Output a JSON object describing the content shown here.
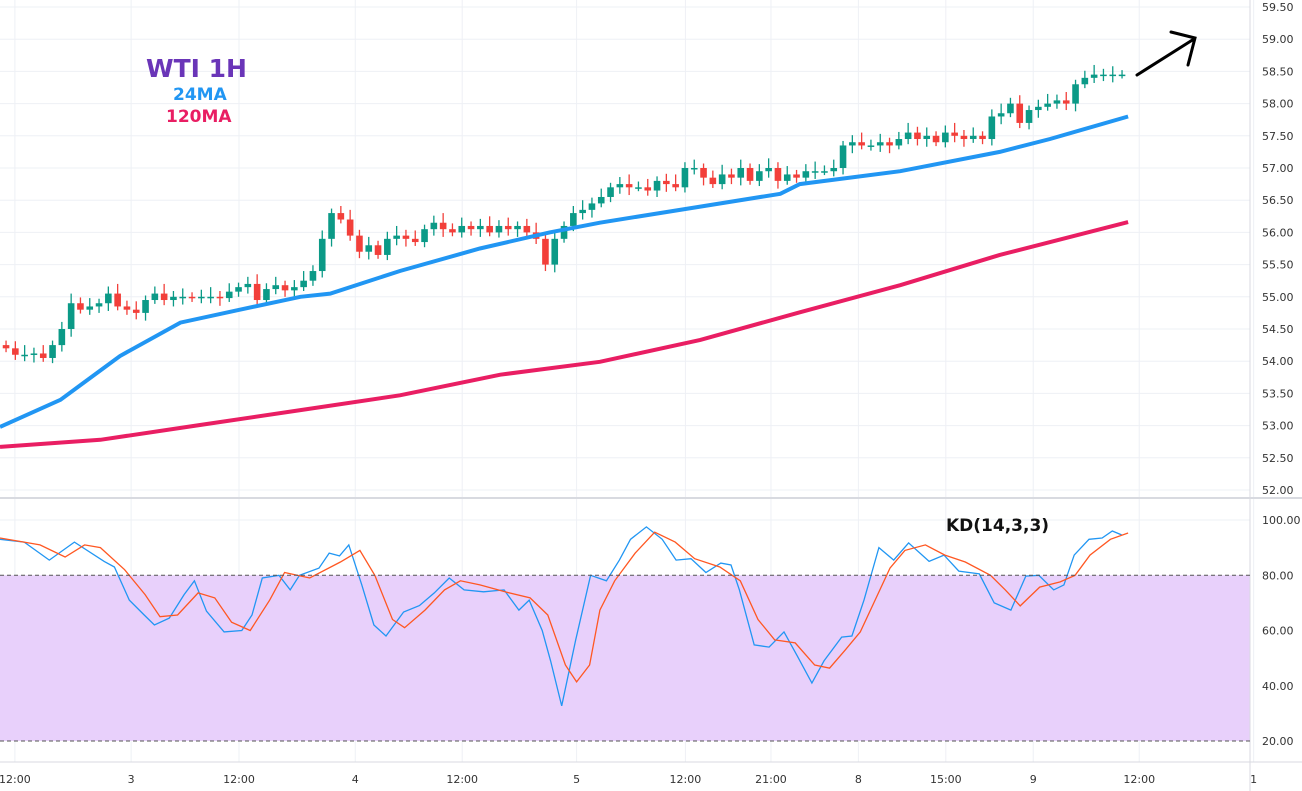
{
  "chart_data": [
    {
      "type": "candlestick",
      "title": "WTI 1H",
      "legend": [
        "24MA",
        "120MA"
      ],
      "legend_placement": "top-left",
      "colors": {
        "up": "#0b9a87",
        "down": "#f23f3a",
        "ma24": "#2196f3",
        "ma120": "#e91e63",
        "grid": "#eef0f5"
      },
      "ylim": [
        52.0,
        59.5
      ],
      "yticks": [
        "52.00",
        "52.50",
        "53.00",
        "53.50",
        "54.00",
        "54.50",
        "55.00",
        "55.50",
        "56.00",
        "56.50",
        "57.00",
        "57.50",
        "58.00",
        "58.50",
        "59.00",
        "59.50"
      ],
      "xticks": [
        {
          "bar": 1.6,
          "label": "12:00"
        },
        {
          "bar": 14.1,
          "label": "3"
        },
        {
          "bar": 25.7,
          "label": "12:00"
        },
        {
          "bar": 38.2,
          "label": "4"
        },
        {
          "bar": 49.7,
          "label": "12:00"
        },
        {
          "bar": 62,
          "label": "5"
        },
        {
          "bar": 73.7,
          "label": "12:00"
        },
        {
          "bar": 82.9,
          "label": "21:00"
        },
        {
          "bar": 92.3,
          "label": "8"
        },
        {
          "bar": 101.7,
          "label": "15:00"
        },
        {
          "bar": 111.1,
          "label": "9"
        },
        {
          "bar": 122.5,
          "label": "12:00"
        },
        {
          "bar": 134.8,
          "label": "1"
        }
      ],
      "open_first": 54.25,
      "close": [
        54.2,
        54.1,
        54.1,
        54.12,
        54.05,
        54.25,
        54.5,
        54.9,
        54.8,
        54.85,
        54.9,
        55.05,
        54.85,
        54.8,
        54.75,
        54.95,
        55.05,
        54.95,
        55.0,
        55.0,
        54.98,
        55.0,
        55.0,
        54.98,
        55.08,
        55.15,
        55.2,
        54.95,
        55.12,
        55.18,
        55.1,
        55.15,
        55.25,
        55.4,
        55.9,
        56.3,
        56.2,
        55.95,
        55.7,
        55.8,
        55.65,
        55.9,
        55.95,
        55.9,
        55.85,
        56.05,
        56.15,
        56.05,
        56.0,
        56.1,
        56.05,
        56.1,
        56.0,
        56.1,
        56.05,
        56.1,
        56.0,
        55.9,
        55.5,
        55.9,
        56.1,
        56.3,
        56.35,
        56.45,
        56.55,
        56.7,
        56.75,
        56.7,
        56.7,
        56.65,
        56.8,
        56.75,
        56.7,
        57.0,
        57.0,
        56.85,
        56.75,
        56.9,
        56.85,
        57.0,
        56.8,
        56.95,
        57.0,
        56.8,
        56.9,
        56.85,
        56.95,
        56.95,
        56.95,
        57.0,
        57.35,
        57.4,
        57.35,
        57.35,
        57.4,
        57.35,
        57.45,
        57.55,
        57.45,
        57.5,
        57.4,
        57.55,
        57.5,
        57.45,
        57.5,
        57.45,
        57.8,
        57.85,
        58.0,
        57.7,
        57.9,
        57.95,
        58.0,
        58.05,
        58.0,
        58.3,
        58.4,
        58.45,
        58.45,
        58.45,
        58.45
      ],
      "ma24": [
        [
          0,
          52.98
        ],
        [
          6.5,
          53.4
        ],
        [
          12.9,
          54.08
        ],
        [
          19.4,
          54.6
        ],
        [
          25.8,
          54.8
        ],
        [
          32.3,
          55.0
        ],
        [
          35.5,
          55.05
        ],
        [
          43,
          55.4
        ],
        [
          51.6,
          55.75
        ],
        [
          59.1,
          56.0
        ],
        [
          64.5,
          56.15
        ],
        [
          75.3,
          56.4
        ],
        [
          83.9,
          56.6
        ],
        [
          86,
          56.75
        ],
        [
          96.8,
          56.95
        ],
        [
          107.5,
          57.25
        ],
        [
          112.9,
          57.45
        ],
        [
          121.3,
          57.8
        ]
      ],
      "ma120": [
        [
          0,
          52.67
        ],
        [
          10.8,
          52.78
        ],
        [
          21.5,
          53.01
        ],
        [
          32.3,
          53.24
        ],
        [
          43,
          53.47
        ],
        [
          53.8,
          53.79
        ],
        [
          64.5,
          53.99
        ],
        [
          75.3,
          54.33
        ],
        [
          86,
          54.76
        ],
        [
          96.8,
          55.18
        ],
        [
          107.5,
          55.65
        ],
        [
          121.3,
          56.16
        ]
      ],
      "annotation": "up-arrow"
    },
    {
      "type": "line",
      "title": "KD(14,3,3)",
      "ylim": [
        15,
        105
      ],
      "yticks": [
        "20.00",
        "40.00",
        "60.00",
        "80.00",
        "100.00"
      ],
      "band": [
        20,
        80
      ],
      "colors": {
        "k": "#2196f3",
        "d": "#ff5722",
        "band": "#e8d0fb"
      },
      "k": [
        [
          0,
          93
        ],
        [
          2.6,
          92
        ],
        [
          5.3,
          85.5
        ],
        [
          8,
          92
        ],
        [
          11.2,
          85
        ],
        [
          12.3,
          83
        ],
        [
          13.9,
          71
        ],
        [
          15.5,
          65.6
        ],
        [
          16.6,
          62
        ],
        [
          18.2,
          64.5
        ],
        [
          19.8,
          73
        ],
        [
          20.9,
          78
        ],
        [
          22.2,
          67
        ],
        [
          24.1,
          59.5
        ],
        [
          26,
          60
        ],
        [
          27.1,
          65.6
        ],
        [
          28.2,
          79
        ],
        [
          30,
          80
        ],
        [
          31.2,
          74.7
        ],
        [
          32.2,
          80
        ],
        [
          34.3,
          82.6
        ],
        [
          35.4,
          88
        ],
        [
          36.5,
          87
        ],
        [
          37.5,
          91
        ],
        [
          38.9,
          76.5
        ],
        [
          40.2,
          62
        ],
        [
          41.5,
          58
        ],
        [
          43.4,
          66.7
        ],
        [
          45.1,
          69
        ],
        [
          46.7,
          73.6
        ],
        [
          48.3,
          79
        ],
        [
          49.9,
          74.7
        ],
        [
          52,
          74
        ],
        [
          54.2,
          74.7
        ],
        [
          55.8,
          67.4
        ],
        [
          56.9,
          71
        ],
        [
          58.3,
          60
        ],
        [
          59.2,
          49
        ],
        [
          60.4,
          32.7
        ],
        [
          61.9,
          56.6
        ],
        [
          63.5,
          80
        ],
        [
          65.2,
          78
        ],
        [
          66.6,
          85.5
        ],
        [
          67.8,
          93
        ],
        [
          69.5,
          97.5
        ],
        [
          71.2,
          93
        ],
        [
          72.7,
          85.5
        ],
        [
          74.3,
          86
        ],
        [
          75.9,
          81
        ],
        [
          77.5,
          84.4
        ],
        [
          78.6,
          83.7
        ],
        [
          79.5,
          74.7
        ],
        [
          81.1,
          54.8
        ],
        [
          82.7,
          54
        ],
        [
          84.3,
          59.5
        ],
        [
          85.7,
          51
        ],
        [
          87.3,
          41
        ],
        [
          88.6,
          49
        ],
        [
          90.5,
          57.6
        ],
        [
          91.6,
          58
        ],
        [
          92.9,
          71
        ],
        [
          94.5,
          90
        ],
        [
          96.1,
          85.5
        ],
        [
          97.7,
          91.7
        ],
        [
          99.9,
          85
        ],
        [
          101.5,
          87.3
        ],
        [
          103.1,
          81.5
        ],
        [
          105.3,
          80.5
        ],
        [
          106.9,
          70
        ],
        [
          108.7,
          67.4
        ],
        [
          110.3,
          79.7
        ],
        [
          111.7,
          80
        ],
        [
          113.3,
          74.7
        ],
        [
          114.4,
          76.5
        ],
        [
          115.5,
          87.3
        ],
        [
          117.1,
          93
        ],
        [
          118.5,
          93.5
        ],
        [
          119.6,
          96
        ],
        [
          120.6,
          94.6
        ]
      ],
      "d": [
        [
          0,
          93.5
        ],
        [
          4.3,
          91
        ],
        [
          7,
          86.6
        ],
        [
          9.1,
          91
        ],
        [
          10.8,
          90
        ],
        [
          13.4,
          82
        ],
        [
          15.6,
          73
        ],
        [
          17.2,
          65
        ],
        [
          19.1,
          65.6
        ],
        [
          21.3,
          73.6
        ],
        [
          23.1,
          71.8
        ],
        [
          24.9,
          63
        ],
        [
          26.9,
          60
        ],
        [
          29,
          71
        ],
        [
          30.6,
          81
        ],
        [
          33.3,
          79
        ],
        [
          36.6,
          84.8
        ],
        [
          38.7,
          89
        ],
        [
          40.3,
          80
        ],
        [
          42.2,
          64
        ],
        [
          43.5,
          61
        ],
        [
          45.7,
          67.4
        ],
        [
          47.8,
          74.7
        ],
        [
          49.5,
          78
        ],
        [
          51.6,
          76.5
        ],
        [
          54.3,
          74
        ],
        [
          57,
          71.8
        ],
        [
          58.9,
          65.6
        ],
        [
          60.8,
          47.5
        ],
        [
          62,
          41.4
        ],
        [
          63.4,
          47.5
        ],
        [
          64.5,
          67.4
        ],
        [
          66.1,
          78
        ],
        [
          68.3,
          88
        ],
        [
          70.4,
          95.6
        ],
        [
          72.6,
          92
        ],
        [
          74.7,
          86
        ],
        [
          77.4,
          83
        ],
        [
          79.6,
          78
        ],
        [
          81.5,
          64
        ],
        [
          83.3,
          56.6
        ],
        [
          85.5,
          55.5
        ],
        [
          87.6,
          47.5
        ],
        [
          89.2,
          46.4
        ],
        [
          90.9,
          53
        ],
        [
          92.5,
          59.5
        ],
        [
          94.1,
          71
        ],
        [
          95.7,
          82.6
        ],
        [
          97.3,
          89
        ],
        [
          99.5,
          91
        ],
        [
          101.6,
          87.3
        ],
        [
          103.8,
          84.8
        ],
        [
          106.5,
          80
        ],
        [
          108.1,
          74.7
        ],
        [
          109.7,
          68.9
        ],
        [
          111.8,
          75.7
        ],
        [
          114,
          77.6
        ],
        [
          115.6,
          80
        ],
        [
          117.2,
          87.3
        ],
        [
          119.4,
          93
        ],
        [
          121.3,
          95.3
        ]
      ]
    }
  ]
}
